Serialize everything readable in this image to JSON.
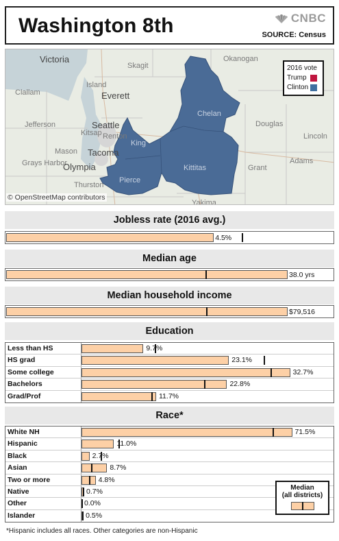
{
  "header": {
    "title": "Washington 8th",
    "logo_text": "CNBC",
    "source": "SOURCE: Census"
  },
  "map": {
    "attribution": "© OpenStreetMap contributors",
    "places": [
      "Victoria",
      "Skagit",
      "Okanogan",
      "Island",
      "Everett",
      "Clallam",
      "Chelan",
      "Jefferson",
      "Seattle",
      "Kitsap",
      "Renton",
      "King",
      "Douglas",
      "Lincoln",
      "Mason",
      "Tacoma",
      "Grays Harbor",
      "Olympia",
      "Kittitas",
      "Grant",
      "Adams",
      "Thurston",
      "Pierce",
      "Yakima"
    ],
    "district_color": "#4a6b96",
    "legend": {
      "title": "2016 vote",
      "items": [
        {
          "label": "Trump",
          "color": "#c0163f"
        },
        {
          "label": "Clinton",
          "color": "#3f6fa0"
        }
      ]
    }
  },
  "chart_data": [
    {
      "type": "bar",
      "title": "Jobless rate (2016 avg.)",
      "values": [
        4.5
      ],
      "value_labels": [
        "4.5%"
      ],
      "median": 5.1,
      "xlim": [
        0,
        6.1
      ]
    },
    {
      "type": "bar",
      "title": "Median age",
      "values": [
        38.0
      ],
      "value_labels": [
        "38.0 yrs"
      ],
      "median": 26.9,
      "xlim": [
        0,
        38.0
      ]
    },
    {
      "type": "bar",
      "title": "Median household income",
      "values": [
        79516
      ],
      "value_labels": [
        "$79,516"
      ],
      "median": 56500,
      "xlim": [
        0,
        79516
      ]
    },
    {
      "type": "bar",
      "title": "Education",
      "categories": [
        "Less than HS",
        "HS grad",
        "Some college",
        "Bachelors",
        "Grad/Prof"
      ],
      "values": [
        9.7,
        23.1,
        32.7,
        22.8,
        11.7
      ],
      "value_labels": [
        "9.7%",
        "23.1%",
        "32.7%",
        "22.8%",
        "11.7%"
      ],
      "medians": [
        11.5,
        28.6,
        29.6,
        19.2,
        10.9
      ],
      "xlim": [
        0,
        33.7
      ]
    },
    {
      "type": "bar",
      "title": "Race*",
      "categories": [
        "White NH",
        "Hispanic",
        "Black",
        "Asian",
        "Two or more",
        "Native",
        "Other",
        "Islander"
      ],
      "values": [
        71.5,
        11.0,
        2.7,
        8.7,
        4.8,
        0.7,
        0.0,
        0.5
      ],
      "value_labels": [
        "71.5%",
        "11.0%",
        "2.7%",
        "8.7%",
        "4.8%",
        "0.7%",
        "0.0%",
        "0.5%"
      ],
      "medians": [
        64.8,
        12.5,
        6.6,
        3.2,
        2.5,
        0.5,
        0.1,
        0.2
      ],
      "xlim": [
        0,
        73.0
      ]
    }
  ],
  "median_legend": {
    "line1": "Median",
    "line2": "(all districts)"
  },
  "footnote": "*Hispanic includes all races. Other categories are non-Hispanic"
}
